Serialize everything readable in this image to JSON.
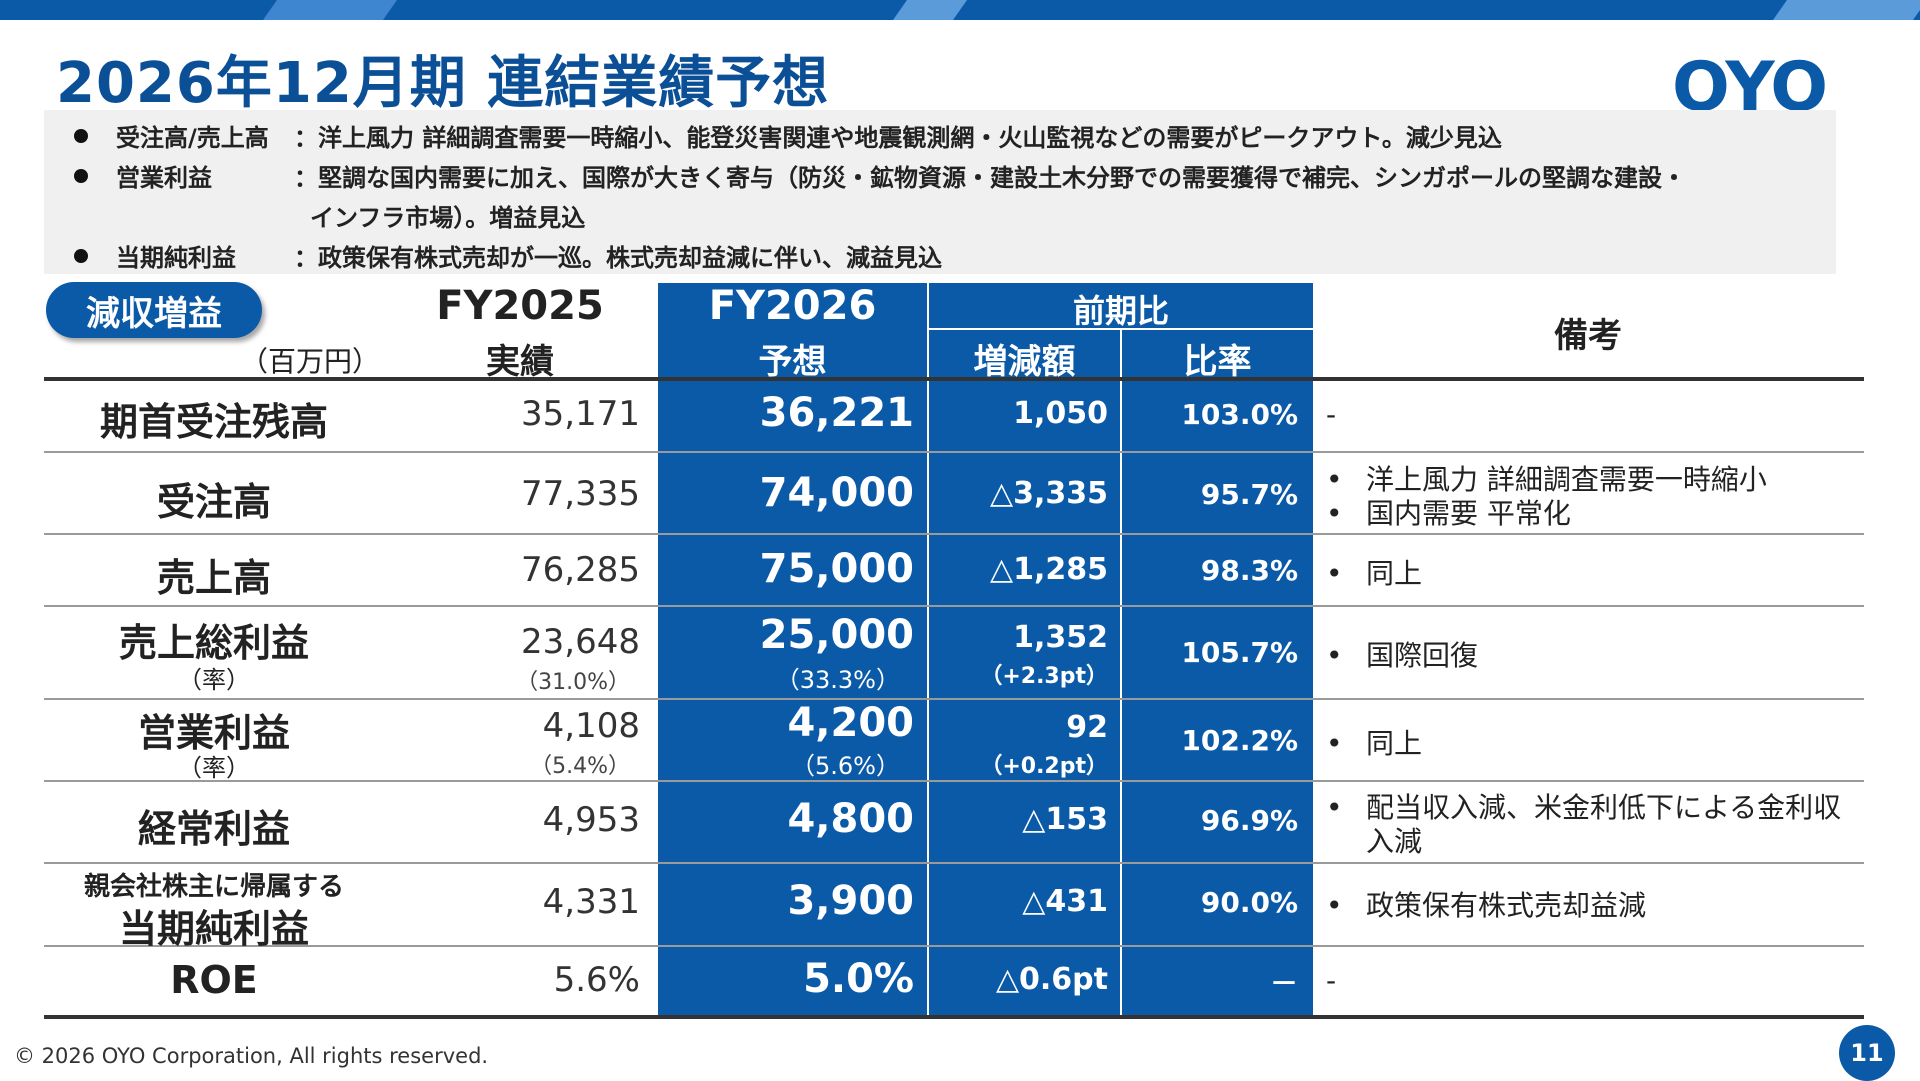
{
  "title": "2026年12月期 連結業績予想",
  "logo": "OYO",
  "notes": [
    {
      "label": "受注高/売上高",
      "text": "：洋上風力 詳細調査需要一時縮小、能登災害関連や地震観測網・火山監視などの需要がピークアウト。減少見込"
    },
    {
      "label": "営業利益",
      "text": "：堅調な国内需要に加え、国際が大きく寄与（防災・鉱物資源・建設土木分野での需要獲得で補完、シンガポールの堅調な建設・",
      "cont": "インフラ市場）。増益見込"
    },
    {
      "label": "当期純利益",
      "text": "：政策保有株式売却が一巡。株式売却益減に伴い、減益見込"
    }
  ],
  "badge": "減収増益",
  "unit": "（百万円）",
  "headers": {
    "fy2025_line1": "FY2025",
    "fy2025_line2": "実績",
    "fy2026_line1": "FY2026",
    "fy2026_line2": "予想",
    "yoy": "前期比",
    "diff": "増減額",
    "ratio": "比率",
    "remarks": "備考"
  },
  "rows": [
    {
      "label": "期首受注残高",
      "fy2025": "35,171",
      "fy2026": "36,221",
      "diff": "1,050",
      "ratio": "103.0%",
      "remarks": [
        "-"
      ]
    },
    {
      "label": "受注高",
      "fy2025": "77,335",
      "fy2026": "74,000",
      "diff": "△3,335",
      "ratio": "95.7%",
      "remarks": [
        "洋上風力 詳細調査需要一時縮小",
        "国内需要 平常化"
      ]
    },
    {
      "label": "売上高",
      "fy2025": "76,285",
      "fy2026": "75,000",
      "diff": "△1,285",
      "ratio": "98.3%",
      "remarks": [
        "同上"
      ]
    },
    {
      "label": "売上総利益",
      "sublabel": "（率）",
      "fy2025": "23,648",
      "fy2025_sub": "（31.0%）",
      "fy2026": "25,000",
      "fy2026_sub": "（33.3%）",
      "diff": "1,352",
      "diff_sub": "（+2.3pt）",
      "ratio": "105.7%",
      "remarks": [
        "国際回復"
      ]
    },
    {
      "label": "営業利益",
      "sublabel": "（率）",
      "fy2025": "4,108",
      "fy2025_sub": "（5.4%）",
      "fy2026": "4,200",
      "fy2026_sub": "（5.6%）",
      "diff": "92",
      "diff_sub": "（+0.2pt）",
      "ratio": "102.2%",
      "remarks": [
        "同上"
      ]
    },
    {
      "label": "経常利益",
      "fy2025": "4,953",
      "fy2026": "4,800",
      "diff": "△153",
      "ratio": "96.9%",
      "remarks": [
        "配当収入減、米金利低下による金利収",
        "入減"
      ]
    },
    {
      "label_small": "親会社株主に帰属する",
      "label": "当期純利益",
      "fy2025": "4,331",
      "fy2026": "3,900",
      "diff": "△431",
      "ratio": "90.0%",
      "remarks": [
        "政策保有株式売却益減"
      ]
    },
    {
      "label": "ROE",
      "fy2025": "5.6%",
      "fy2026": "5.0%",
      "diff": "△0.6pt",
      "ratio": "－",
      "remarks": [
        "-"
      ]
    }
  ],
  "footer": "© 2026 OYO Corporation, All rights reserved.",
  "page_number": "11"
}
